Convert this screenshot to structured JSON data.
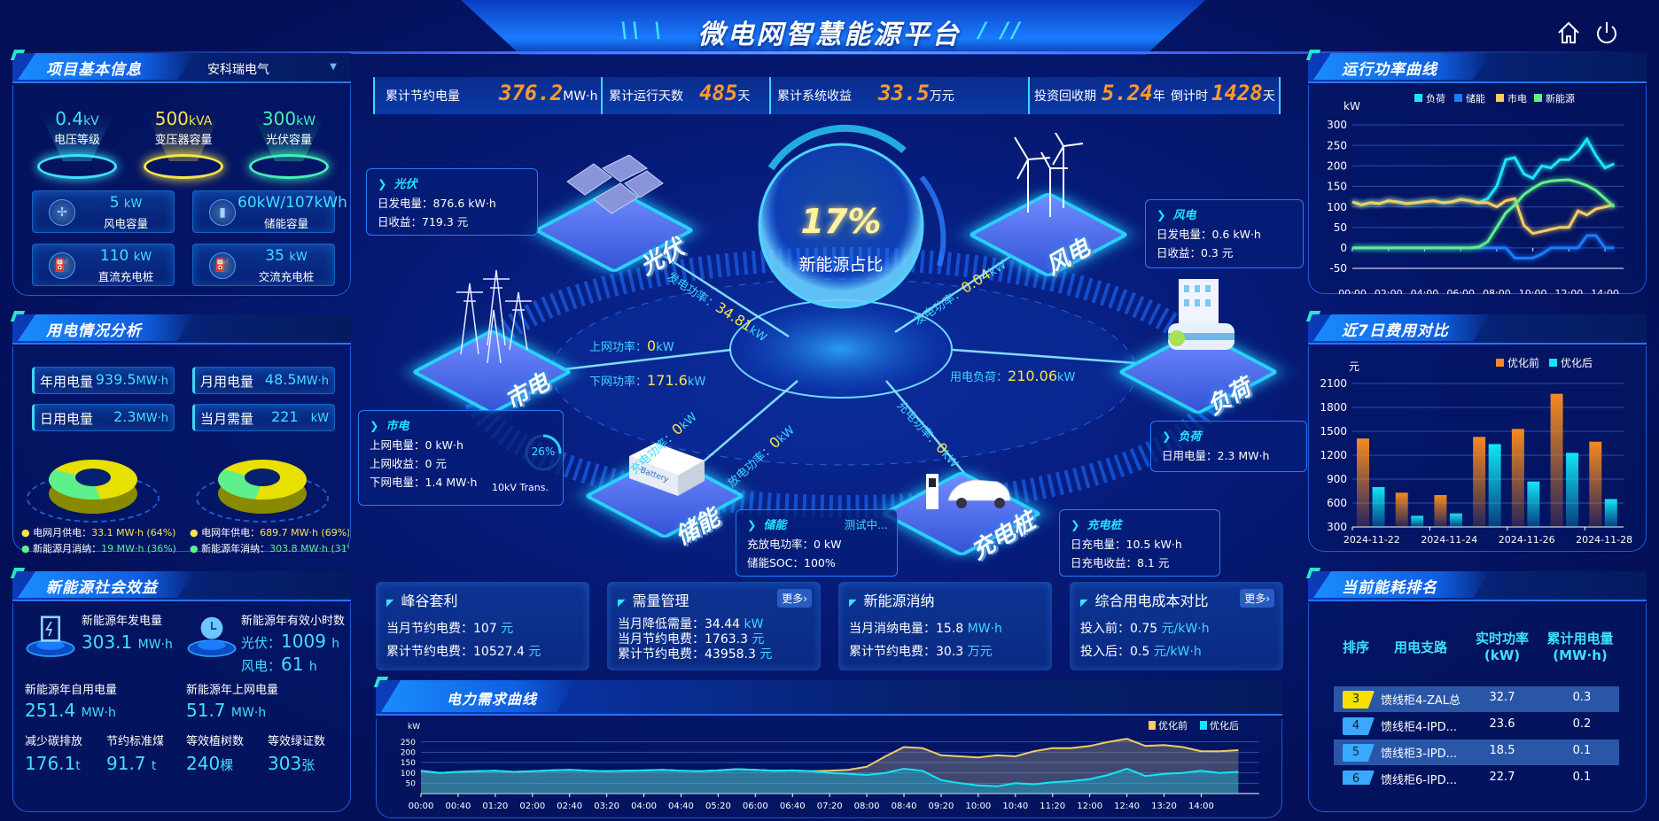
{
  "header": {
    "title": "微电网智慧能源平台",
    "home_icon": "home-icon",
    "power_icon": "power-icon"
  },
  "kpis": [
    {
      "label": "累计节约电量",
      "value": "376.2",
      "unit": "MW·h"
    },
    {
      "label": "累计运行天数",
      "value": "485",
      "unit": "天"
    },
    {
      "label": "累计系统收益",
      "value": "33.5",
      "unit": "万元"
    },
    {
      "label": "投资回收期",
      "value": "5.24",
      "unit": "年"
    },
    {
      "label": "倒计时",
      "value": "1428",
      "unit": "天"
    }
  ],
  "project": {
    "title": "项目基本信息",
    "company": "安科瑞电气",
    "stats": [
      {
        "value": "0.4",
        "unit": "kV",
        "label": "电压等级",
        "color": "#3fe0ff"
      },
      {
        "value": "500",
        "unit": "kVA",
        "label": "变压器容量",
        "color": "#f7e54a"
      },
      {
        "value": "300",
        "unit": "kW",
        "label": "光伏容量",
        "color": "#44f0b8"
      }
    ],
    "cards": [
      {
        "value": "5",
        "unit": "kW",
        "label": "风电容量",
        "icon": "wind-turbine-icon"
      },
      {
        "value": "60kW/107kWh",
        "unit": "",
        "label": "储能容量",
        "icon": "battery-icon"
      },
      {
        "value": "110",
        "unit": "kW",
        "label": "直流充电桩",
        "icon": "charger-icon"
      },
      {
        "value": "35",
        "unit": "kW",
        "label": "交流充电桩",
        "icon": "charger-icon"
      }
    ]
  },
  "usage": {
    "title": "用电情况分析",
    "boxes": [
      {
        "label": "年用电量",
        "value": "939.5",
        "unit": "MW·h"
      },
      {
        "label": "月用电量",
        "value": "48.5",
        "unit": "MW·h"
      },
      {
        "label": "日用电量",
        "value": "2.3",
        "unit": "MW·h"
      },
      {
        "label": "当月需量",
        "value": "221",
        "unit": "kW"
      }
    ],
    "donuts": [
      {
        "grid_pct": 64,
        "new_pct": 36,
        "legend": [
          {
            "text": "电网月供电：",
            "value": "33.1 MW·h (64%)",
            "color": "#f7e54a"
          },
          {
            "text": "新能源月消纳：",
            "value": "19 MW·h (36%)",
            "color": "#5ef08a"
          }
        ]
      },
      {
        "grid_pct": 69,
        "new_pct": 31,
        "legend": [
          {
            "text": "电网年供电：",
            "value": "689.7 MW·h (69%)",
            "color": "#f7e54a"
          },
          {
            "text": "新能源年消纳：",
            "value": "303.8 MW·h (31%)",
            "color": "#5ef08a"
          }
        ]
      }
    ]
  },
  "benefit": {
    "title": "新能源社会效益",
    "gen_label": "新能源年发电量",
    "gen_value": "303.1",
    "gen_unit": "MW·h",
    "hours_label": "新能源年有效小时数",
    "pv_label": "光伏：",
    "pv_value": "1009",
    "wind_label": "风电：",
    "wind_value": "61",
    "hours_unit": "h",
    "self_label": "新能源年自用电量",
    "self_value": "251.4",
    "self_unit": "MW·h",
    "co2_label": "减少碳排放",
    "co2_value": "176.1",
    "co2_unit": "t",
    "coal_label": "节约标准煤",
    "coal_value": "91.7",
    "coal_unit": "t",
    "grid_label": "新能源年上网电量",
    "grid_value": "51.7",
    "grid_unit": "MW·h",
    "tree_label": "等效植树数",
    "tree_value": "240",
    "tree_unit": "棵",
    "cert_label": "等效绿证数",
    "cert_value": "303",
    "cert_unit": "张"
  },
  "center": {
    "ratio": "17%",
    "ratio_label": "新能源占比",
    "nodes": {
      "pv": "光伏",
      "wind": "风电",
      "grid": "市电",
      "load": "负荷",
      "storage": "储能",
      "charger": "充电桩"
    },
    "flows": {
      "pv_label": "发电功率：",
      "pv_value": "34.81",
      "wind_label": "发电功率：",
      "wind_value": "0.04",
      "up_label": "上网功率：",
      "up_value": "0",
      "down_label": "下网功率：",
      "down_value": "171.6",
      "load_label": "用电负荷：",
      "load_value": "210.06",
      "st_charge_label": "充电功率：",
      "st_charge_value": "0",
      "st_discharge_label": "放电功率：",
      "st_discharge_value": "0",
      "ev_label": "充电功率：",
      "ev_value": "0",
      "unit": "kW"
    },
    "pv_box": {
      "title": "光伏",
      "l1": "日发电量：876.6 kW·h",
      "l2": "日收益：719.3 元"
    },
    "wind_box": {
      "title": "风电",
      "l1": "日发电量：0.6 kW·h",
      "l2": "日收益：0.3 元"
    },
    "grid_box": {
      "title": "市电",
      "l1": "上网电量：0 kW·h",
      "l2": "上网收益：0 元",
      "l3": "下网电量：1.4 MW·h",
      "gauge": "26%",
      "gauge_value": 26,
      "gauge_label": "10kV Trans."
    },
    "load_box": {
      "title": "负荷",
      "l1": "日用电量：2.3 MW·h"
    },
    "storage_box": {
      "title": "储能",
      "status": "测试中...",
      "l1": "充放电功率：0 kW",
      "l2": "储能SOC：100%"
    },
    "charger_box": {
      "title": "充电桩",
      "l1": "日充电量：10.5 kW·h",
      "l2": "日充电收益：8.1 元"
    }
  },
  "bottom_cards": [
    {
      "title": "峰谷套利",
      "rows": [
        {
          "k": "当月节约电费：",
          "v": "107",
          "u": "元"
        },
        {
          "k": "累计节约电费：",
          "v": "10527.4",
          "u": "元"
        }
      ]
    },
    {
      "title": "需量管理",
      "more": "更多›",
      "rows": [
        {
          "k": "当月降低需量：",
          "v": "34.44",
          "u": "kW"
        },
        {
          "k": "当月节约电费：",
          "v": "1763.3",
          "u": "元"
        },
        {
          "k": "累计节约电费：",
          "v": "43958.3",
          "u": "元"
        }
      ]
    },
    {
      "title": "新能源消纳",
      "rows": [
        {
          "k": "当月消纳电量：",
          "v": "15.8",
          "u": "MW·h"
        },
        {
          "k": "累计节约电费：",
          "v": "30.3",
          "u": "万元"
        }
      ]
    },
    {
      "title": "综合用电成本对比",
      "more": "更多›",
      "rows": [
        {
          "k": "投入前：",
          "v": "0.75",
          "u": "元/kW·h"
        },
        {
          "k": "投入后：",
          "v": "0.5",
          "u": "元/kW·h"
        }
      ]
    }
  ],
  "chart_data": [
    {
      "id": "power",
      "title": "运行功率曲线",
      "type": "line",
      "ylabel": "kW",
      "ylim": [
        -50,
        300
      ],
      "yticks": [
        -50,
        0,
        50,
        100,
        150,
        200,
        250,
        300
      ],
      "legend_position": "top",
      "grid": true,
      "x": [
        "00:00",
        "00:30",
        "01:00",
        "01:30",
        "02:00",
        "02:30",
        "03:00",
        "03:30",
        "04:00",
        "04:30",
        "05:00",
        "05:30",
        "06:00",
        "06:30",
        "07:00",
        "07:30",
        "08:00",
        "08:30",
        "09:00",
        "09:30",
        "10:00",
        "10:30",
        "11:00",
        "11:30",
        "12:00",
        "12:30",
        "13:00",
        "13:30",
        "14:00",
        "14:30"
      ],
      "xticks": [
        "00:00",
        "02:00",
        "04:00",
        "06:00",
        "08:00",
        "10:00",
        "12:00",
        "14:00"
      ],
      "series": [
        {
          "name": "负荷",
          "color": "#19e8f5",
          "values": [
            112,
            105,
            110,
            108,
            115,
            112,
            108,
            110,
            113,
            115,
            110,
            112,
            118,
            115,
            110,
            120,
            150,
            215,
            220,
            180,
            170,
            200,
            195,
            215,
            215,
            235,
            265,
            225,
            195,
            205
          ]
        },
        {
          "name": "储能",
          "color": "#1a7cff",
          "values": [
            0,
            0,
            0,
            0,
            0,
            0,
            0,
            0,
            0,
            0,
            0,
            0,
            0,
            0,
            0,
            0,
            0,
            0,
            -25,
            -25,
            -25,
            -15,
            0,
            0,
            0,
            0,
            30,
            30,
            0,
            0
          ]
        },
        {
          "name": "市电",
          "color": "#f5cd62",
          "values": [
            112,
            105,
            110,
            108,
            115,
            112,
            108,
            110,
            113,
            115,
            110,
            112,
            118,
            115,
            110,
            110,
            100,
            115,
            120,
            55,
            35,
            40,
            45,
            50,
            50,
            90,
            80,
            95,
            100,
            105
          ]
        },
        {
          "name": "新能源",
          "color": "#5ef08a",
          "values": [
            0,
            0,
            0,
            0,
            0,
            0,
            0,
            0,
            0,
            0,
            0,
            0,
            0,
            0,
            2,
            15,
            50,
            85,
            105,
            130,
            145,
            158,
            163,
            165,
            166,
            160,
            152,
            140,
            120,
            100
          ]
        }
      ]
    },
    {
      "id": "cost",
      "title": "近7日费用对比",
      "type": "bar",
      "ylabel": "元",
      "ylim": [
        300,
        2100
      ],
      "yticks": [
        300,
        600,
        900,
        1200,
        1500,
        1800,
        2100
      ],
      "legend_position": "top-right",
      "grid": true,
      "categories": [
        "2024-11-22",
        "2024-11-23",
        "2024-11-24",
        "2024-11-25",
        "2024-11-26",
        "2024-11-27",
        "2024-11-28"
      ],
      "xticks": [
        "2024-11-22",
        "2024-11-24",
        "2024-11-26",
        "2024-11-28"
      ],
      "series": [
        {
          "name": "优化前",
          "color": "#f58a1f",
          "values": [
            1410,
            730,
            700,
            1430,
            1530,
            1970,
            1370
          ]
        },
        {
          "name": "优化后",
          "color": "#12e6f5",
          "values": [
            800,
            440,
            470,
            1340,
            870,
            1230,
            650
          ]
        }
      ]
    },
    {
      "id": "demand",
      "title": "电力需求曲线",
      "type": "area",
      "ylabel": "kW",
      "ylim": [
        0,
        300
      ],
      "yticks": [
        50,
        100,
        150,
        200,
        250
      ],
      "legend_position": "top-right",
      "grid": true,
      "x": [
        "00:00",
        "00:20",
        "00:40",
        "01:00",
        "01:20",
        "01:40",
        "02:00",
        "02:20",
        "02:40",
        "03:00",
        "03:20",
        "03:40",
        "04:00",
        "04:20",
        "04:40",
        "05:00",
        "05:20",
        "05:40",
        "06:00",
        "06:20",
        "06:40",
        "07:00",
        "07:20",
        "07:40",
        "08:00",
        "08:20",
        "08:40",
        "09:00",
        "09:20",
        "09:40",
        "10:00",
        "10:20",
        "10:40",
        "11:00",
        "11:20",
        "11:40",
        "12:00",
        "12:20",
        "12:40",
        "13:00",
        "13:20",
        "13:40",
        "14:00",
        "14:20",
        "14:40"
      ],
      "xticks": [
        "00:00",
        "00:40",
        "01:20",
        "02:00",
        "02:40",
        "03:20",
        "04:00",
        "04:40",
        "05:20",
        "06:00",
        "06:40",
        "07:20",
        "08:00",
        "08:40",
        "09:20",
        "10:00",
        "10:40",
        "11:20",
        "12:00",
        "12:40",
        "13:20",
        "14:00"
      ],
      "series": [
        {
          "name": "优化前",
          "color": "#f5cd62",
          "values": [
            110,
            100,
            105,
            108,
            110,
            105,
            108,
            112,
            115,
            110,
            108,
            110,
            112,
            115,
            110,
            108,
            112,
            118,
            115,
            110,
            112,
            108,
            110,
            115,
            130,
            180,
            225,
            220,
            185,
            180,
            175,
            185,
            180,
            205,
            220,
            220,
            230,
            250,
            265,
            230,
            235,
            225,
            205,
            205,
            210
          ]
        },
        {
          "name": "优化后",
          "color": "#12e6f5",
          "values": [
            110,
            100,
            105,
            108,
            110,
            105,
            108,
            112,
            115,
            110,
            108,
            110,
            112,
            115,
            110,
            108,
            112,
            118,
            115,
            110,
            112,
            108,
            100,
            95,
            90,
            100,
            120,
            110,
            65,
            50,
            40,
            35,
            50,
            45,
            55,
            60,
            70,
            90,
            120,
            85,
            95,
            100,
            110,
            100,
            105
          ]
        }
      ]
    }
  ],
  "ranking": {
    "title": "当前能耗排名",
    "headers": [
      "排序",
      "用电支路",
      "实时功率\n(kW)",
      "累计用电量\n(MW·h)"
    ],
    "rows": [
      {
        "rank": "3",
        "name": "馈线柜4-ZAL总",
        "power": "32.7",
        "energy": "0.3",
        "color": "#f7e000"
      },
      {
        "rank": "4",
        "name": "馈线柜4-IPD...",
        "power": "23.6",
        "energy": "0.2",
        "color": "#3aa8ff"
      },
      {
        "rank": "5",
        "name": "馈线柜3-IPD...",
        "power": "18.5",
        "energy": "0.1",
        "color": "#3aa8ff"
      },
      {
        "rank": "6",
        "name": "馈线柜6-IPD...",
        "power": "22.7",
        "energy": "0.1",
        "color": "#3aa8ff"
      }
    ]
  }
}
